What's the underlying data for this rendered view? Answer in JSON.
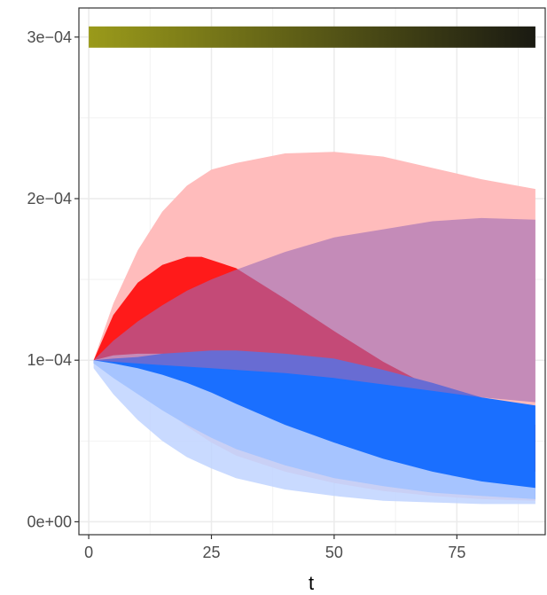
{
  "chart_data": {
    "type": "area",
    "title": "",
    "xlabel": "t",
    "ylabel": "",
    "xlim": [
      -2,
      93
    ],
    "ylim": [
      -8e-06,
      0.000318
    ],
    "x_ticks": [
      0,
      25,
      50,
      75
    ],
    "x_tick_labels": [
      "0",
      "25",
      "50",
      "75"
    ],
    "y_ticks": [
      0,
      0.0001,
      0.0002,
      0.0003
    ],
    "y_tick_labels": [
      "0e+00",
      "1e−04",
      "2e−04",
      "3e−04"
    ],
    "grid": true,
    "legend": "none",
    "gradient_bar": {
      "y": 0.0003,
      "x_start": 0,
      "x_end": 91,
      "color_start": "#9a9a1a",
      "color_end": "#1a1a12"
    },
    "series": [
      {
        "color": "#ffbcbc",
        "opacity": 1,
        "x": [
          1,
          5,
          10,
          15,
          20,
          25,
          30,
          40,
          50,
          60,
          70,
          80,
          91
        ],
        "upper": [
          0.0001,
          0.000135,
          0.000168,
          0.000192,
          0.000208,
          0.000218,
          0.000222,
          0.000228,
          0.000229,
          0.000226,
          0.000219,
          0.000212,
          0.000206
        ],
        "lower": [
          0.0001,
          9.4e-05,
          8.3e-05,
          7.1e-05,
          5.9e-05,
          4.9e-05,
          4.1e-05,
          3.1e-05,
          2.4e-05,
          1.9e-05,
          1.6e-05,
          1.4e-05,
          1.3e-05
        ]
      },
      {
        "color": "#ff1a1a",
        "opacity": 1,
        "x": [
          1,
          5,
          10,
          15,
          20,
          23,
          25,
          30,
          40,
          50,
          60,
          70,
          80,
          91
        ],
        "upper": [
          0.0001,
          0.000128,
          0.000148,
          0.000159,
          0.000164,
          0.000164,
          0.000162,
          0.000157,
          0.000138,
          0.000118,
          9.9e-05,
          8.3e-05,
          7.1e-05,
          6e-05
        ],
        "lower": [
          0.0001,
          0.000103,
          0.000104,
          0.000104,
          0.000102,
          0.0001,
          9.8e-05,
          9.3e-05,
          8e-05,
          6.6e-05,
          5.4e-05,
          4.4e-05,
          3.7e-05,
          3.1e-05
        ]
      },
      {
        "color": "#1a6fff",
        "opacity": 1,
        "x": [
          1,
          5,
          10,
          15,
          20,
          25,
          30,
          40,
          50,
          60,
          70,
          80,
          91
        ],
        "upper": [
          0.0001,
          0.000101,
          0.000102,
          0.000104,
          0.000105,
          0.000106,
          0.000106,
          0.000104,
          0.000101,
          9.4e-05,
          8.6e-05,
          7.7e-05,
          7.2e-05
        ],
        "lower": [
          9.8e-05,
          8.9e-05,
          7.9e-05,
          6.9e-05,
          6e-05,
          5.2e-05,
          4.5e-05,
          3.5e-05,
          2.7e-05,
          2.2e-05,
          1.8e-05,
          1.6e-05,
          1.4e-05
        ]
      },
      {
        "color": "#bfd4ff",
        "opacity": 0.85,
        "x": [
          1,
          5,
          10,
          15,
          20,
          25,
          30,
          40,
          50,
          60,
          70,
          80,
          91
        ],
        "upper": [
          0.0001,
          9.8e-05,
          9.5e-05,
          9.1e-05,
          8.6e-05,
          8e-05,
          7.3e-05,
          6e-05,
          4.9e-05,
          3.9e-05,
          3.1e-05,
          2.5e-05,
          2.1e-05
        ],
        "lower": [
          9.5e-05,
          7.9e-05,
          6.3e-05,
          5e-05,
          4e-05,
          3.3e-05,
          2.7e-05,
          2e-05,
          1.6e-05,
          1.3e-05,
          1.2e-05,
          1.1e-05,
          1.1e-05
        ]
      },
      {
        "color": "#9c6bb5",
        "opacity": 0.6,
        "x": [
          1,
          5,
          10,
          15,
          20,
          25,
          30,
          40,
          50,
          60,
          70,
          80,
          91
        ],
        "upper": [
          0.0001,
          0.000112,
          0.000124,
          0.000134,
          0.000143,
          0.00015,
          0.000156,
          0.000167,
          0.000176,
          0.000181,
          0.000186,
          0.000188,
          0.000187
        ],
        "lower": [
          0.0001,
          9.9e-05,
          9.8e-05,
          9.7e-05,
          9.6e-05,
          9.5e-05,
          9.4e-05,
          9.2e-05,
          8.9e-05,
          8.5e-05,
          8.1e-05,
          7.7e-05,
          7.4e-05
        ]
      }
    ]
  }
}
